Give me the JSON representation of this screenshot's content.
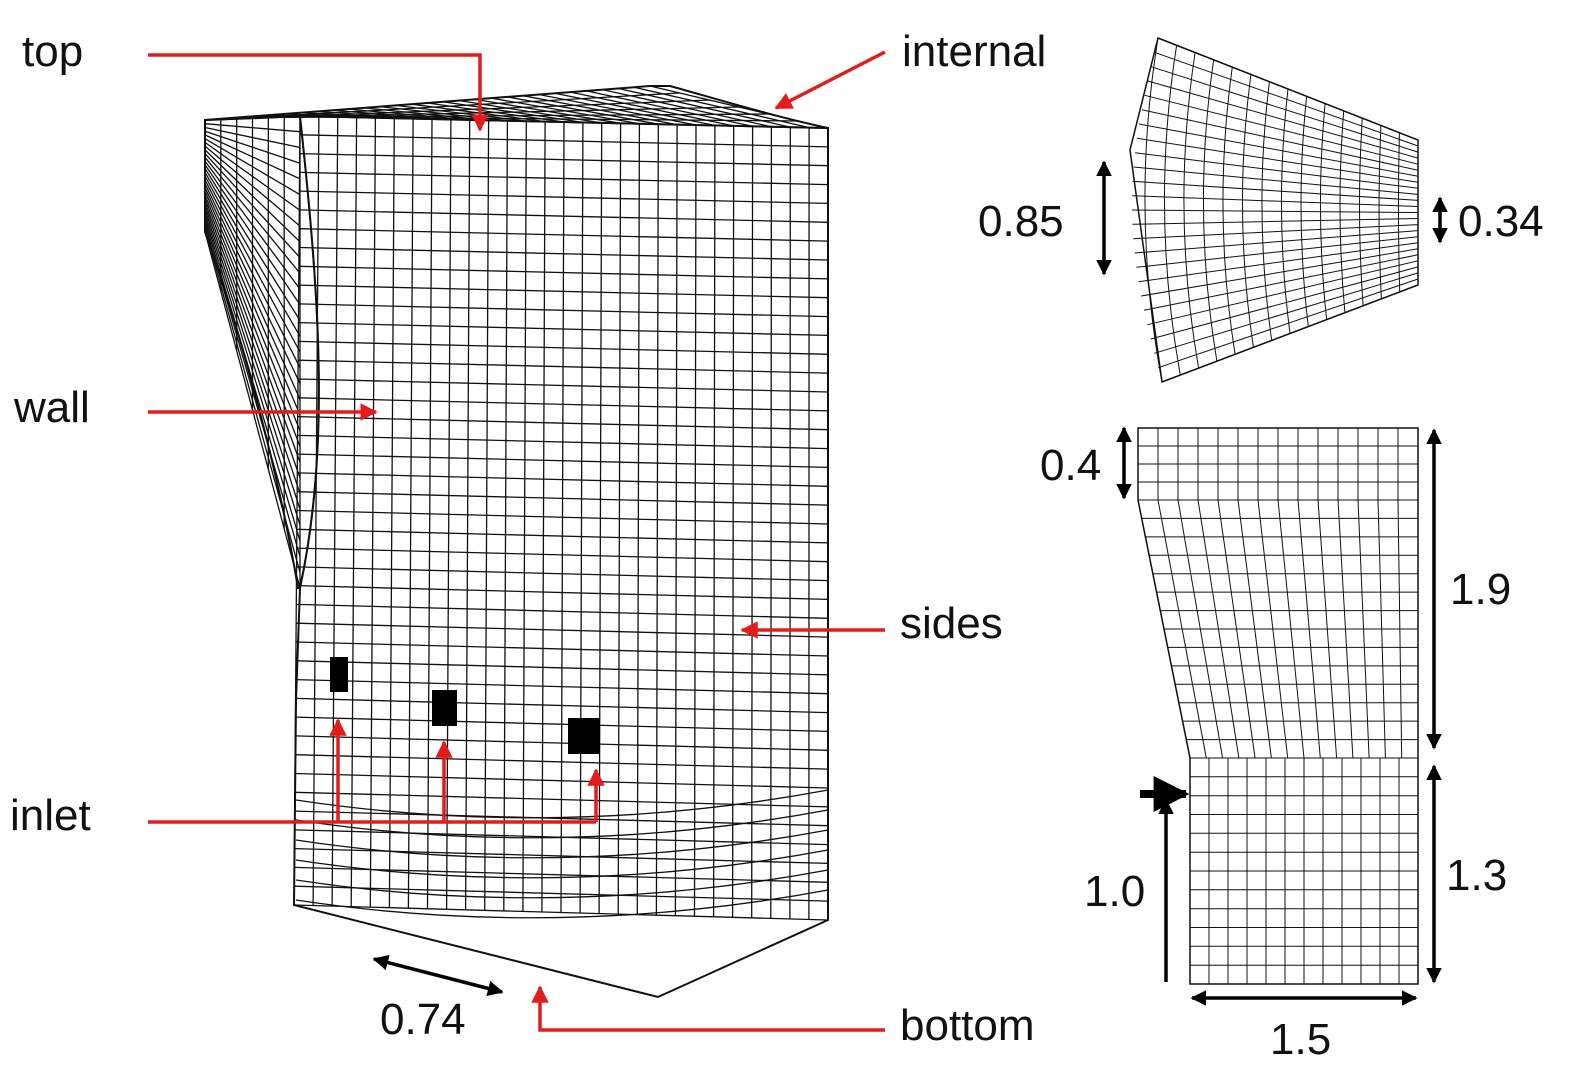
{
  "colors": {
    "annotation": "#e41b1b",
    "mesh": "#111111",
    "dimension": "#000000",
    "background": "#ffffff"
  },
  "labels": {
    "top": "top",
    "internal": "internal",
    "wall": "wall",
    "sides": "sides",
    "inlet": "inlet",
    "bottom": "bottom"
  },
  "dimensions": {
    "bottom_arc": "0.74",
    "plan_outer": "0.85",
    "plan_inner": "0.34",
    "upper_step": "0.4",
    "upper_height": "1.9",
    "lower_height": "1.3",
    "inlet_height": "1.0",
    "width": "1.5"
  }
}
